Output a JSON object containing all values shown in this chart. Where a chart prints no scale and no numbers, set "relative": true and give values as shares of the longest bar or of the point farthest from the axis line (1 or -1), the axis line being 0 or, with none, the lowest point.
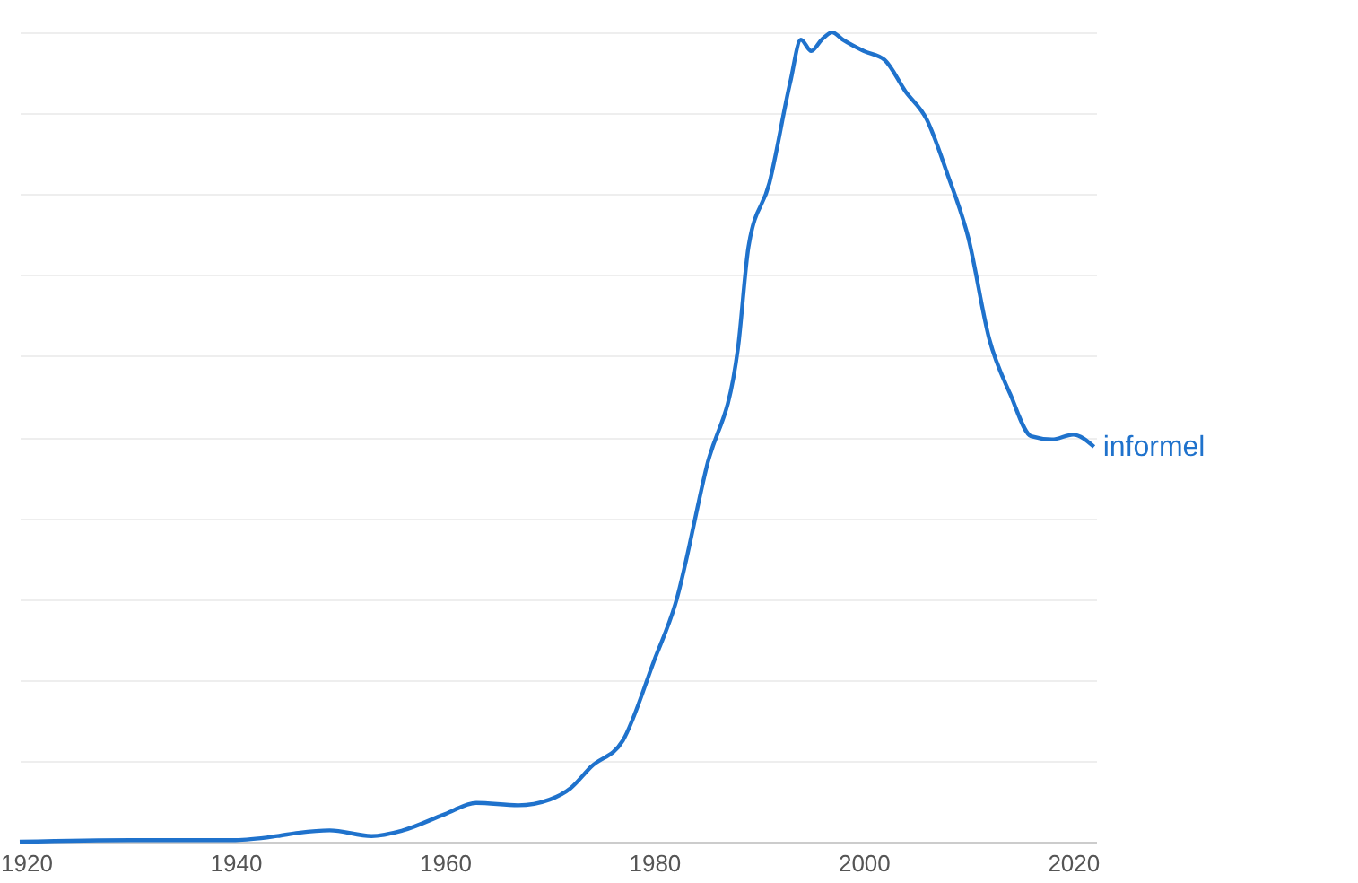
{
  "chart_data": {
    "type": "line",
    "relative": true,
    "grid": "y",
    "marker": "none",
    "line_style": "solid",
    "xlim": [
      1919.4,
      2022.2
    ],
    "xticks": [
      1920,
      1940,
      1960,
      1980,
      2000,
      2020
    ],
    "series": [
      {
        "name": "informel",
        "color": "#1f72cc",
        "x": [
          1919.4,
          1930,
          1940,
          1944,
          1946,
          1949,
          1953,
          1956,
          1960,
          1963,
          1967,
          1970,
          1972,
          1974,
          1977,
          1980,
          1982,
          1985,
          1988,
          1989,
          1991,
          1993,
          1994,
          1995,
          1996,
          1997,
          1998,
          2000,
          2002,
          2004,
          2006,
          2008,
          2010,
          2012,
          2014,
          2016,
          2018,
          2020,
          2022
        ],
        "values": [
          0,
          0.002,
          0.002,
          0.007,
          0.011,
          0.014,
          0.007,
          0.014,
          0.034,
          0.048,
          0.045,
          0.052,
          0.066,
          0.093,
          0.125,
          0.224,
          0.293,
          0.463,
          0.61,
          0.735,
          0.814,
          0.939,
          0.991,
          0.977,
          0.991,
          1.0,
          0.991,
          0.977,
          0.966,
          0.927,
          0.893,
          0.825,
          0.746,
          0.621,
          0.553,
          0.501,
          0.497,
          0.503,
          0.488
        ]
      }
    ]
  }
}
